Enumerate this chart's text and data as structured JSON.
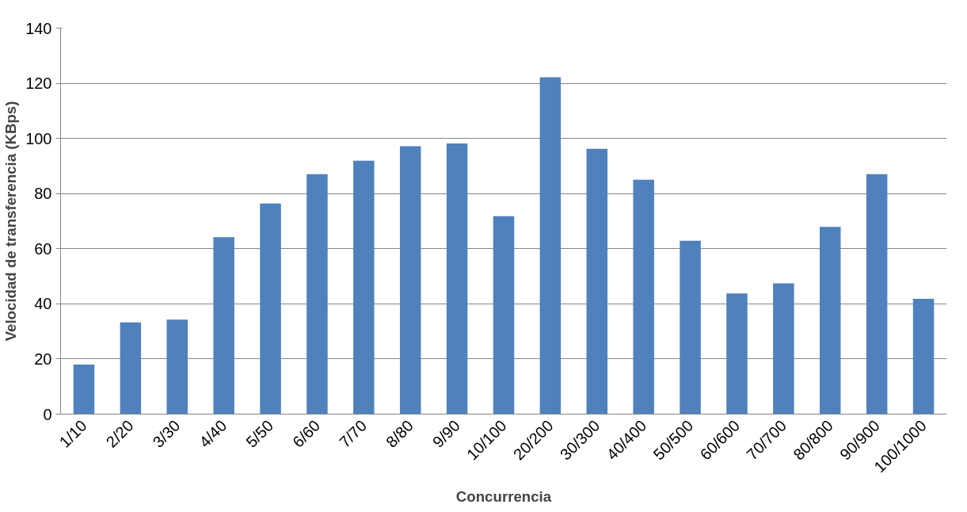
{
  "chart_data": {
    "type": "bar",
    "xlabel": "Concurrencia",
    "ylabel": "Velocidad de transferencia (KBps)",
    "categories": [
      "1/10",
      "2/20",
      "3/30",
      "4/40",
      "5/50",
      "6/60",
      "7/70",
      "8/80",
      "9/90",
      "10/100",
      "20/200",
      "30/300",
      "40/400",
      "50/500",
      "60/600",
      "70/700",
      "80/800",
      "90/900",
      "100/1000"
    ],
    "values": [
      18,
      33.3,
      34.3,
      64.2,
      76.4,
      87,
      91.9,
      97.2,
      98.2,
      71.8,
      122.2,
      96.2,
      85,
      62.9,
      43.8,
      47.4,
      67.9,
      87,
      41.8
    ],
    "color": "#4f81bd",
    "ylim": [
      0,
      140
    ],
    "yticks": [
      0,
      20,
      40,
      60,
      80,
      100,
      120,
      140
    ],
    "grid": "y"
  }
}
